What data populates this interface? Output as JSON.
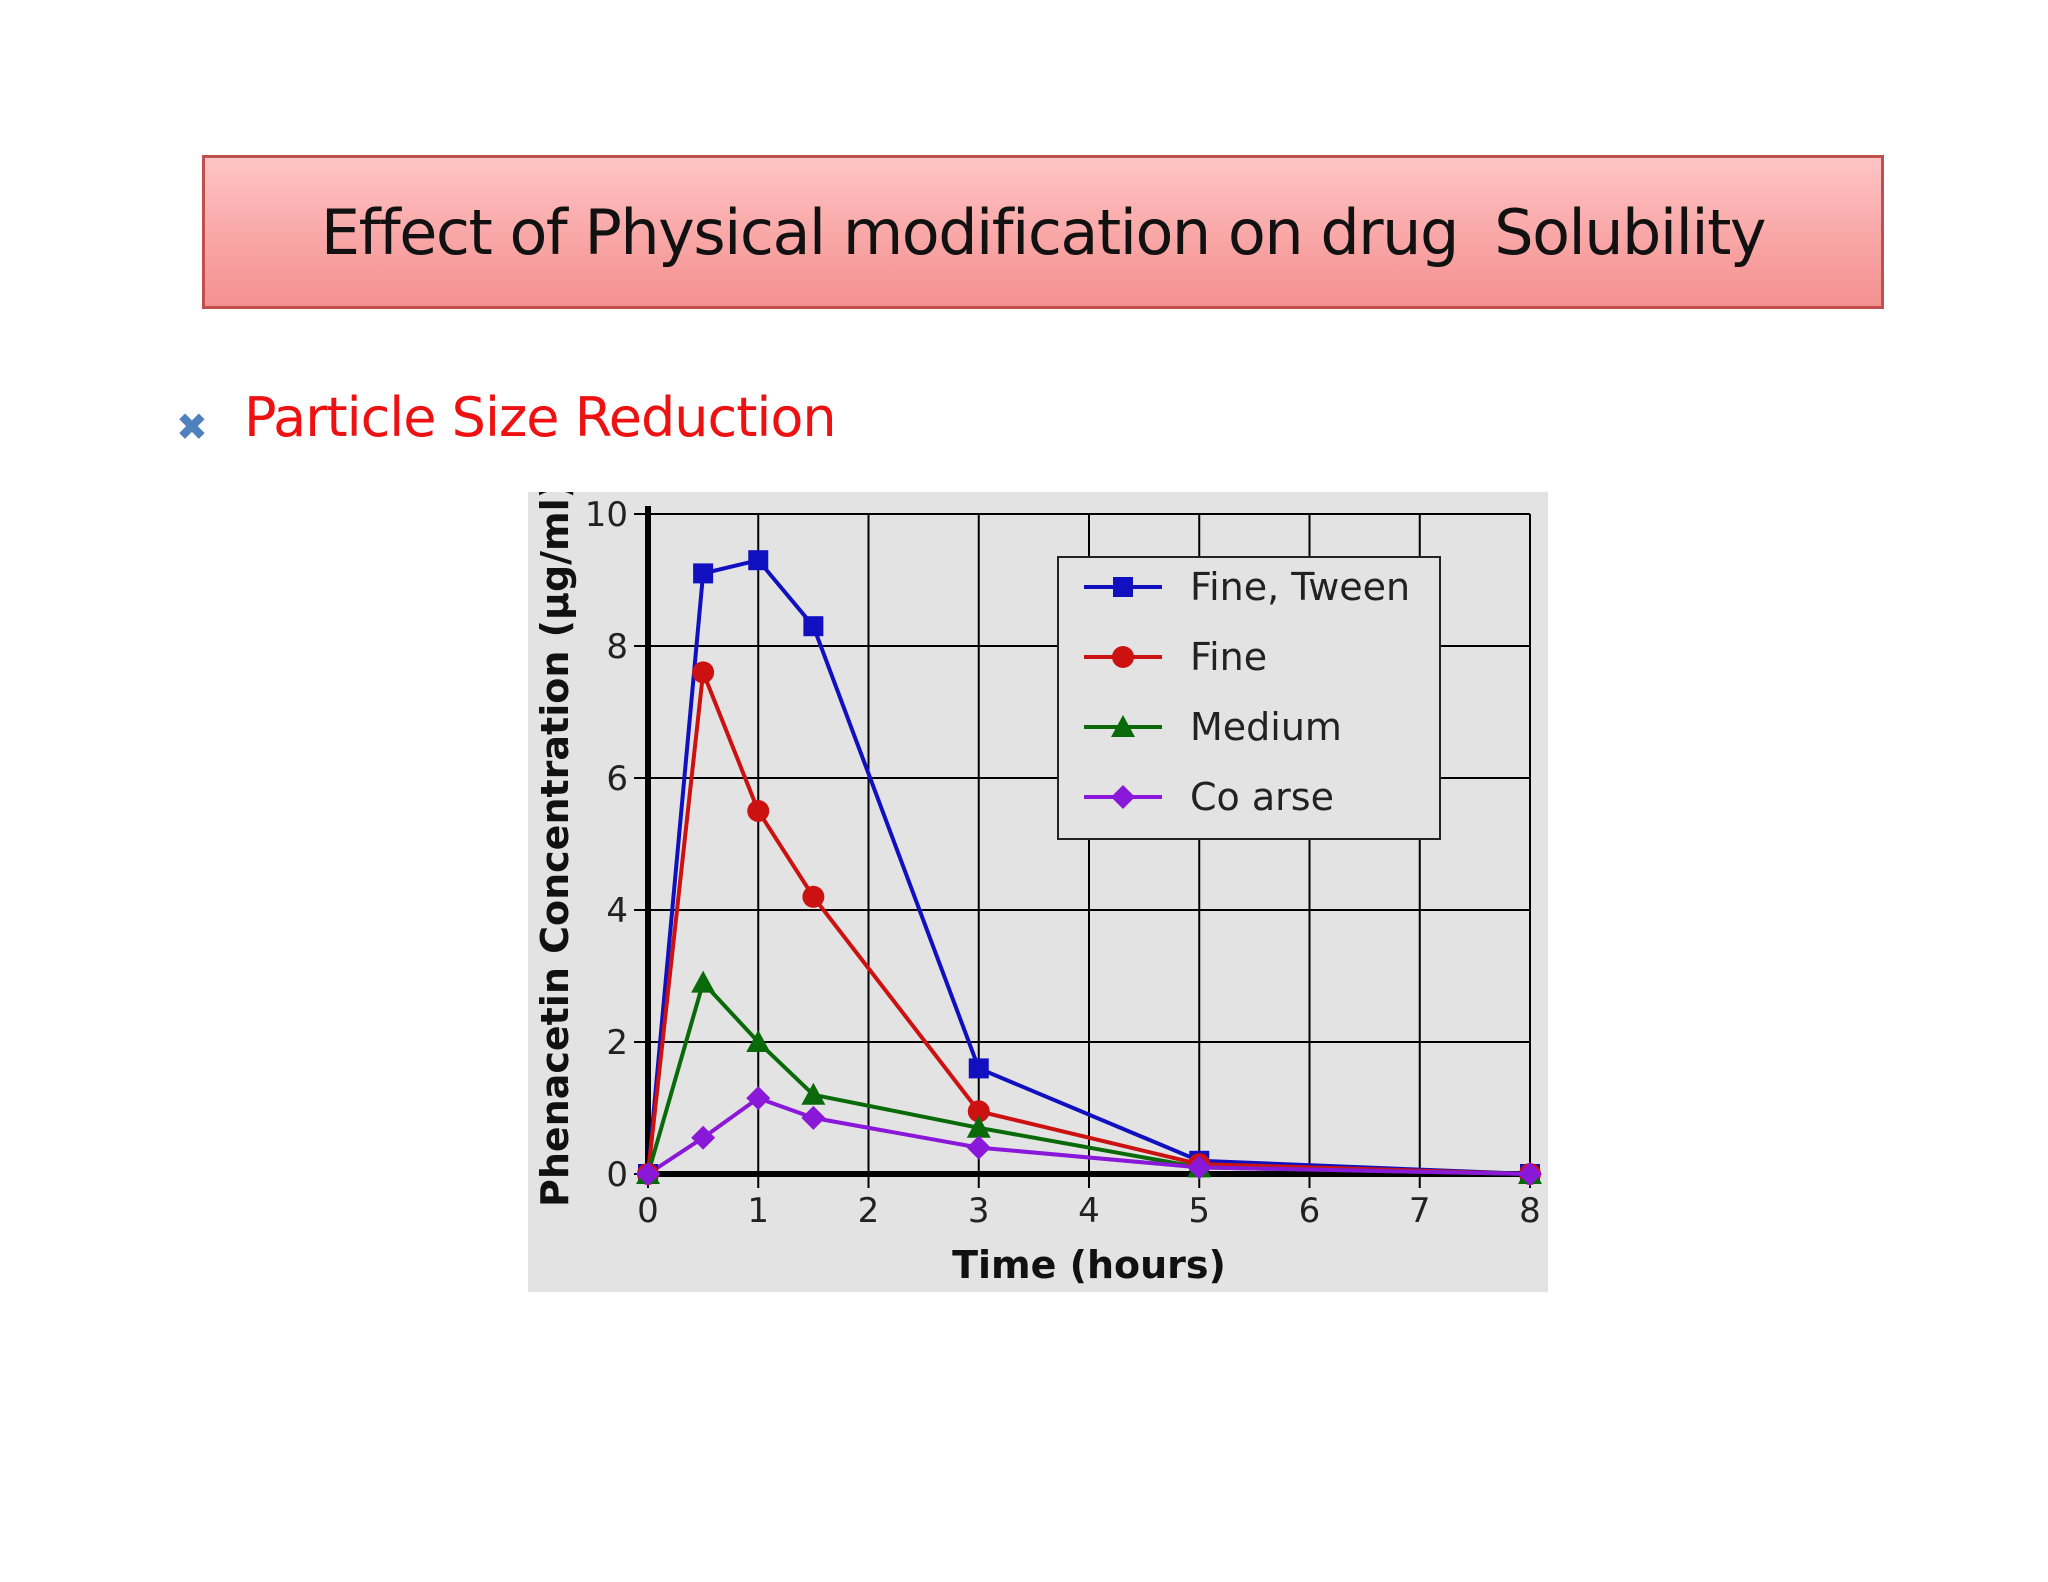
{
  "slide": {
    "title": "Effect of Physical modification on drug  Solubility",
    "bullet_icon": "x-mark-icon",
    "bullet_color": "#4f81bd",
    "bullet_text": "Particle Size Reduction"
  },
  "chart_data": {
    "type": "line",
    "title": "",
    "xlabel": "Time (hours)",
    "ylabel": "Phenacetin Concentration (µg/ml)",
    "xlim": [
      0,
      8
    ],
    "ylim": [
      0,
      10
    ],
    "xticks": [
      "0",
      "1",
      "2",
      "3",
      "4",
      "5",
      "6",
      "7",
      "8"
    ],
    "yticks": [
      "0",
      "2",
      "4",
      "6",
      "8",
      "10"
    ],
    "grid": true,
    "legend_position": "top-right",
    "series": [
      {
        "name": "Fine, Tween",
        "color": "#1010c0",
        "marker": "square",
        "points": [
          [
            0,
            0
          ],
          [
            0.5,
            9.1
          ],
          [
            1,
            9.3
          ],
          [
            1.5,
            8.3
          ],
          [
            3,
            1.6
          ],
          [
            5,
            0.2
          ],
          [
            8,
            0
          ]
        ]
      },
      {
        "name": "Fine",
        "color": "#cc1111",
        "marker": "circle",
        "points": [
          [
            0,
            0
          ],
          [
            0.5,
            7.6
          ],
          [
            1,
            5.5
          ],
          [
            1.5,
            4.2
          ],
          [
            3,
            0.95
          ],
          [
            5,
            0.15
          ],
          [
            8,
            0
          ]
        ]
      },
      {
        "name": "Medium",
        "color": "#0a6a0a",
        "marker": "triangle",
        "points": [
          [
            0,
            0
          ],
          [
            0.5,
            2.9
          ],
          [
            1,
            2.0
          ],
          [
            1.5,
            1.2
          ],
          [
            3,
            0.7
          ],
          [
            5,
            0.1
          ],
          [
            8,
            0
          ]
        ]
      },
      {
        "name": "Co arse",
        "color": "#8a18d8",
        "marker": "diamond",
        "points": [
          [
            0,
            0
          ],
          [
            0.5,
            0.55
          ],
          [
            1,
            1.15
          ],
          [
            1.5,
            0.85
          ],
          [
            3,
            0.4
          ],
          [
            5,
            0.1
          ],
          [
            8,
            0
          ]
        ]
      }
    ]
  }
}
